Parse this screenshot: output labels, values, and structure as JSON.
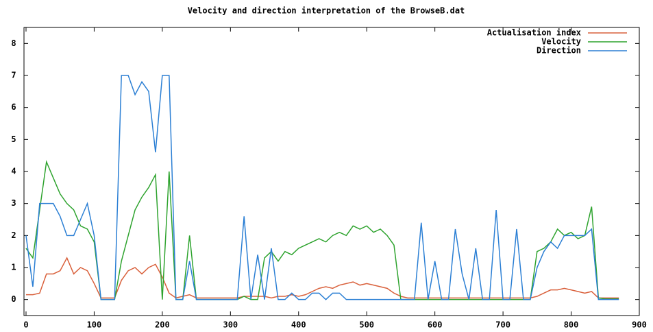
{
  "chart_data": {
    "type": "line",
    "title": "Velocity and direction interpretation of the BrowseB.dat",
    "x": [
      0,
      10,
      20,
      30,
      40,
      50,
      60,
      70,
      80,
      90,
      100,
      110,
      120,
      130,
      140,
      150,
      160,
      170,
      180,
      190,
      200,
      210,
      220,
      230,
      240,
      250,
      260,
      270,
      280,
      290,
      300,
      310,
      320,
      330,
      340,
      350,
      360,
      370,
      380,
      390,
      400,
      410,
      420,
      430,
      440,
      450,
      460,
      470,
      480,
      490,
      500,
      510,
      520,
      530,
      540,
      550,
      560,
      570,
      580,
      590,
      600,
      610,
      620,
      630,
      640,
      650,
      660,
      670,
      680,
      690,
      700,
      710,
      720,
      730,
      740,
      750,
      760,
      770,
      780,
      790,
      800,
      810,
      820,
      830,
      840,
      850,
      860,
      870
    ],
    "series": [
      {
        "name": "Actualisation index",
        "color": "#d9603b",
        "values": [
          0.15,
          0.15,
          0.2,
          0.8,
          0.8,
          0.9,
          1.3,
          0.8,
          1.0,
          0.9,
          0.5,
          0.05,
          0.05,
          0.05,
          0.6,
          0.9,
          1.0,
          0.8,
          1.0,
          1.1,
          0.7,
          0.2,
          0.05,
          0.1,
          0.15,
          0.05,
          0.05,
          0.05,
          0.05,
          0.05,
          0.05,
          0.05,
          0.1,
          0.1,
          0.1,
          0.1,
          0.05,
          0.1,
          0.1,
          0.15,
          0.1,
          0.15,
          0.25,
          0.35,
          0.4,
          0.35,
          0.45,
          0.5,
          0.55,
          0.45,
          0.5,
          0.45,
          0.4,
          0.35,
          0.2,
          0.1,
          0.05,
          0.05,
          0.05,
          0.05,
          0.05,
          0.05,
          0.05,
          0.05,
          0.05,
          0.05,
          0.05,
          0.05,
          0.05,
          0.05,
          0.05,
          0.05,
          0.05,
          0.05,
          0.05,
          0.1,
          0.2,
          0.3,
          0.3,
          0.35,
          0.3,
          0.25,
          0.2,
          0.25,
          0.05,
          0.05,
          0.05,
          0.05
        ]
      },
      {
        "name": "Velocity",
        "color": "#2ea32e",
        "values": [
          1.6,
          1.3,
          2.8,
          4.3,
          3.8,
          3.3,
          3.0,
          2.8,
          2.3,
          2.2,
          1.8,
          0,
          0,
          0,
          1.2,
          2.0,
          2.8,
          3.2,
          3.5,
          3.9,
          0,
          4.0,
          0,
          0,
          2.0,
          0,
          0,
          0,
          0,
          0,
          0,
          0,
          0.1,
          0,
          0,
          1.3,
          1.5,
          1.2,
          1.5,
          1.4,
          1.6,
          1.7,
          1.8,
          1.9,
          1.8,
          2.0,
          2.1,
          2.0,
          2.3,
          2.2,
          2.3,
          2.1,
          2.2,
          2.0,
          1.7,
          0,
          0,
          0,
          0,
          0,
          0,
          0,
          0,
          0,
          0,
          0,
          0,
          0,
          0,
          0,
          0,
          0,
          0,
          0,
          0,
          1.5,
          1.6,
          1.8,
          2.2,
          2.0,
          2.1,
          1.9,
          2.0,
          2.9,
          0.05,
          0.02,
          0.02,
          0.02
        ]
      },
      {
        "name": "Direction",
        "color": "#2b7fd4",
        "values": [
          2.0,
          0.4,
          3.0,
          3.0,
          3.0,
          2.6,
          2.0,
          2.0,
          2.5,
          3.0,
          2.0,
          0,
          0,
          0,
          7,
          7,
          6.4,
          6.8,
          6.5,
          4.6,
          7,
          7,
          0,
          0,
          1.2,
          0,
          0,
          0,
          0,
          0,
          0,
          0,
          2.6,
          0,
          1.4,
          0,
          1.6,
          0,
          0,
          0.2,
          0,
          0,
          0.2,
          0.2,
          0,
          0.2,
          0.2,
          0,
          0,
          0,
          0,
          0,
          0,
          0,
          0,
          0,
          0,
          0,
          2.4,
          0,
          1.2,
          0,
          0,
          2.2,
          0.8,
          0,
          1.6,
          0,
          0,
          2.8,
          0,
          0,
          2.2,
          0,
          0,
          1.0,
          1.5,
          1.8,
          1.6,
          2.0,
          2.0,
          2.0,
          2.0,
          2.2,
          0,
          0,
          0,
          0
        ]
      }
    ],
    "xlim": [
      -3,
      900
    ],
    "ylim": [
      -0.5,
      8.5
    ],
    "xticks": [
      0,
      100,
      200,
      300,
      400,
      500,
      600,
      700,
      800,
      900
    ],
    "yticks": [
      0,
      1,
      2,
      3,
      4,
      5,
      6,
      7,
      8
    ],
    "grid": false,
    "legend": "top-right"
  }
}
